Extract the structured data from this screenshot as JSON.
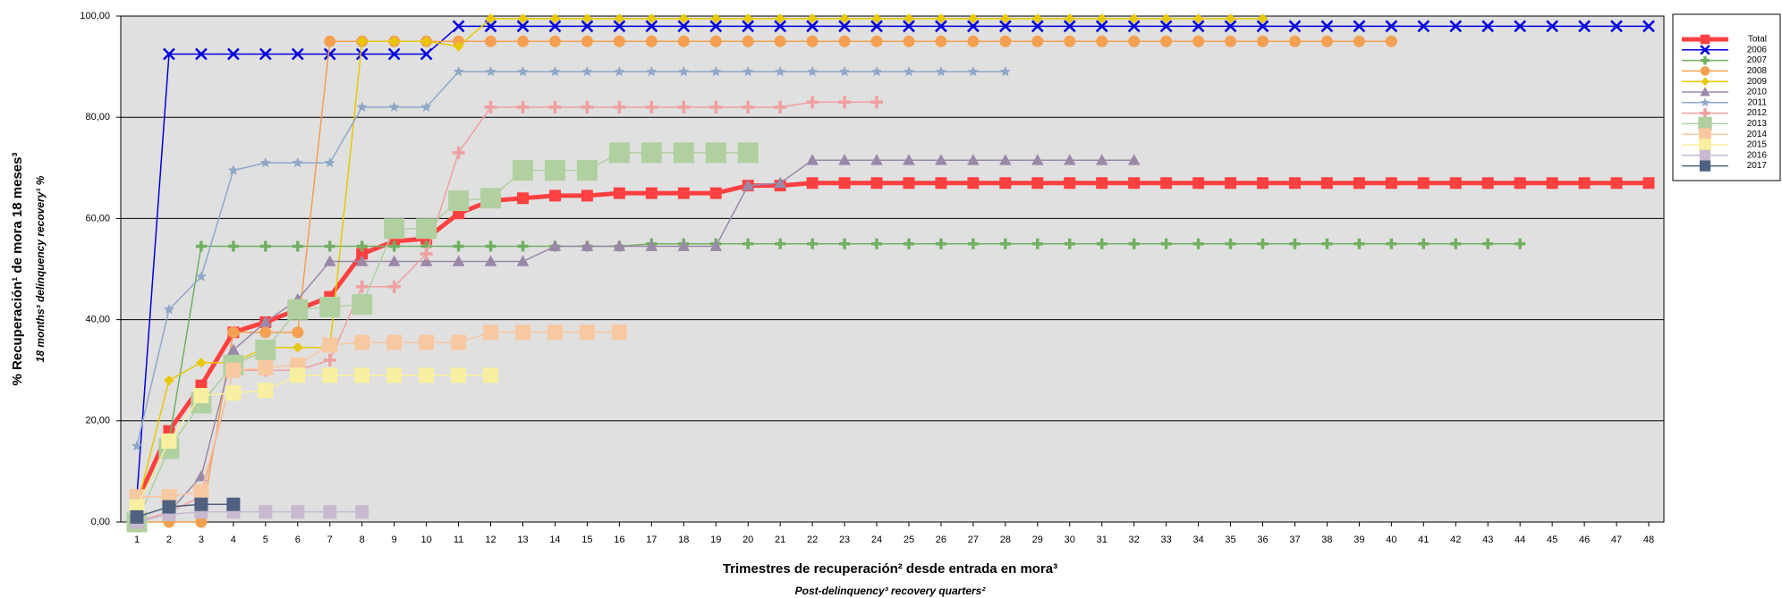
{
  "chart_data": {
    "type": "line",
    "ylabel": "% Recuperación¹ de mora 18 meses³",
    "ylabel_en": "18 months³ delinquency recovery¹ %",
    "xlabel": "Trimestres de recuperación² desde entrada en mora³",
    "xlabel_en": "Post-delinquency³ recovery quarters²",
    "categories": [
      "1",
      "2",
      "3",
      "4",
      "5",
      "6",
      "7",
      "8",
      "9",
      "10",
      "11",
      "12",
      "13",
      "14",
      "15",
      "16",
      "17",
      "18",
      "19",
      "20",
      "21",
      "22",
      "23",
      "24",
      "25",
      "26",
      "27",
      "28",
      "29",
      "30",
      "31",
      "32",
      "33",
      "34",
      "35",
      "36",
      "37",
      "38",
      "39",
      "40",
      "41",
      "42",
      "43",
      "44",
      "45",
      "46",
      "47",
      "48"
    ],
    "ylim": [
      0,
      100
    ],
    "yticks": [
      {
        "value": 0,
        "label": "0,00"
      },
      {
        "value": 20,
        "label": "20,00"
      },
      {
        "value": 40,
        "label": "40,00"
      },
      {
        "value": 60,
        "label": "60,00"
      },
      {
        "value": 80,
        "label": "80,00"
      },
      {
        "value": 100,
        "label": "100,00"
      }
    ],
    "grid": true,
    "legend": "right",
    "series": [
      {
        "name": "Total",
        "color": "#ff4040",
        "marker": "square",
        "values": [
          4,
          18,
          27,
          37.5,
          39.5,
          42,
          44.5,
          53,
          55.5,
          56,
          61,
          63.5,
          64,
          64.5,
          64.5,
          65,
          65,
          65,
          65,
          66.5,
          66.5,
          67,
          67,
          67,
          67,
          67,
          67,
          67,
          67,
          67,
          67,
          67,
          67,
          67,
          67,
          67,
          67,
          67,
          67,
          67,
          67,
          67,
          67,
          67,
          67,
          67,
          67,
          67
        ]
      },
      {
        "name": "2006",
        "color": "#0000e0",
        "marker": "x",
        "values": [
          5,
          92.5,
          92.5,
          92.5,
          92.5,
          92.5,
          92.5,
          92.5,
          92.5,
          92.5,
          98,
          98,
          98,
          98,
          98,
          98,
          98,
          98,
          98,
          98,
          98,
          98,
          98,
          98,
          98,
          98,
          98,
          98,
          98,
          98,
          98,
          98,
          98,
          98,
          98,
          98,
          98,
          98,
          98,
          98,
          98,
          98,
          98,
          98,
          98,
          98,
          98,
          98
        ]
      },
      {
        "name": "2007",
        "color": "#70b060",
        "marker": "plus",
        "values": [
          3,
          16,
          54.5,
          54.5,
          54.5,
          54.5,
          54.5,
          54.5,
          54.5,
          54.5,
          54.5,
          54.5,
          54.5,
          54.5,
          54.5,
          54.5,
          55,
          55,
          55,
          55,
          55,
          55,
          55,
          55,
          55,
          55,
          55,
          55,
          55,
          55,
          55,
          55,
          55,
          55,
          55,
          55,
          55,
          55,
          55,
          55,
          55,
          55,
          55,
          55,
          null,
          null,
          null,
          null
        ]
      },
      {
        "name": "2008",
        "color": "#f4a050",
        "marker": "circle",
        "values": [
          0,
          0,
          0,
          37.5,
          37.5,
          37.5,
          95,
          95,
          95,
          95,
          95,
          95,
          95,
          95,
          95,
          95,
          95,
          95,
          95,
          95,
          95,
          95,
          95,
          95,
          95,
          95,
          95,
          95,
          95,
          95,
          95,
          95,
          95,
          95,
          95,
          95,
          95,
          95,
          95,
          95,
          null,
          null,
          null,
          null,
          null,
          null,
          null,
          null
        ]
      },
      {
        "name": "2009",
        "color": "#e8c800",
        "marker": "diamond",
        "values": [
          3,
          28,
          31.5,
          31.5,
          34.5,
          34.5,
          34.5,
          95,
          95,
          95,
          94,
          99.5,
          99.5,
          99.5,
          99.5,
          99.5,
          99.5,
          99.5,
          99.5,
          99.5,
          99.5,
          99.5,
          99.5,
          99.5,
          99.5,
          99.5,
          99.5,
          99.5,
          99.5,
          99.5,
          99.5,
          99.5,
          99.5,
          99.5,
          99.5,
          99.5,
          null,
          null,
          null,
          null,
          null,
          null,
          null,
          null,
          null,
          null,
          null,
          null
        ]
      },
      {
        "name": "2010",
        "color": "#9a88a8",
        "marker": "triangle",
        "values": [
          0,
          2,
          9,
          34,
          39.5,
          44,
          51.5,
          51.5,
          51.5,
          51.5,
          51.5,
          51.5,
          51.5,
          54.5,
          54.5,
          54.5,
          54.5,
          54.5,
          54.5,
          66.5,
          67,
          71.5,
          71.5,
          71.5,
          71.5,
          71.5,
          71.5,
          71.5,
          71.5,
          71.5,
          71.5,
          71.5,
          null,
          null,
          null,
          null,
          null,
          null,
          null,
          null,
          null,
          null,
          null,
          null,
          null,
          null,
          null,
          null
        ]
      },
      {
        "name": "2011",
        "color": "#90a8c8",
        "marker": "star",
        "values": [
          15,
          42,
          48.5,
          69.5,
          71,
          71,
          71,
          82,
          82,
          82,
          89,
          89,
          89,
          89,
          89,
          89,
          89,
          89,
          89,
          89,
          89,
          89,
          89,
          89,
          89,
          89,
          89,
          89,
          null,
          null,
          null,
          null,
          null,
          null,
          null,
          null,
          null,
          null,
          null,
          null,
          null,
          null,
          null,
          null,
          null,
          null,
          null,
          null
        ]
      },
      {
        "name": "2012",
        "color": "#f0a0a0",
        "marker": "plus",
        "values": [
          0,
          2,
          5,
          30,
          30,
          30,
          32,
          46.5,
          46.5,
          53,
          73,
          82,
          82,
          82,
          82,
          82,
          82,
          82,
          82,
          82,
          82,
          83,
          83,
          83,
          null,
          null,
          null,
          null,
          null,
          null,
          null,
          null,
          null,
          null,
          null,
          null,
          null,
          null,
          null,
          null,
          null,
          null,
          null,
          null,
          null,
          null,
          null,
          null
        ]
      },
      {
        "name": "2013",
        "color": "#b0d0a0",
        "marker": "square",
        "values": [
          0,
          14.5,
          23.5,
          31,
          34,
          42,
          42.5,
          43,
          58,
          58,
          63.5,
          64,
          69.5,
          69.5,
          69.5,
          73,
          73,
          73,
          73,
          73,
          null,
          null,
          null,
          null,
          null,
          null,
          null,
          null,
          null,
          null,
          null,
          null,
          null,
          null,
          null,
          null,
          null,
          null,
          null,
          null,
          null,
          null,
          null,
          null,
          null,
          null,
          null,
          null
        ]
      },
      {
        "name": "2014",
        "color": "#f8c8a0",
        "marker": "square",
        "values": [
          5,
          5,
          6,
          30,
          30.5,
          31,
          35,
          35.5,
          35.5,
          35.5,
          35.5,
          37.5,
          37.5,
          37.5,
          37.5,
          37.5,
          null,
          null,
          null,
          null,
          null,
          null,
          null,
          null,
          null,
          null,
          null,
          null,
          null,
          null,
          null,
          null,
          null,
          null,
          null,
          null,
          null,
          null,
          null,
          null,
          null,
          null,
          null,
          null,
          null,
          null,
          null,
          null
        ]
      },
      {
        "name": "2015",
        "color": "#f8f0a0",
        "marker": "square",
        "values": [
          3,
          16,
          25,
          25.5,
          26,
          29,
          29,
          29,
          29,
          29,
          29,
          29,
          null,
          null,
          null,
          null,
          null,
          null,
          null,
          null,
          null,
          null,
          null,
          null,
          null,
          null,
          null,
          null,
          null,
          null,
          null,
          null,
          null,
          null,
          null,
          null,
          null,
          null,
          null,
          null,
          null,
          null,
          null,
          null,
          null,
          null,
          null,
          null
        ]
      },
      {
        "name": "2016",
        "color": "#c8b8d0",
        "marker": "square",
        "values": [
          0,
          1.5,
          2,
          2,
          2,
          2,
          2,
          2,
          null,
          null,
          null,
          null,
          null,
          null,
          null,
          null,
          null,
          null,
          null,
          null,
          null,
          null,
          null,
          null,
          null,
          null,
          null,
          null,
          null,
          null,
          null,
          null,
          null,
          null,
          null,
          null,
          null,
          null,
          null,
          null,
          null,
          null,
          null,
          null,
          null,
          null,
          null,
          null
        ]
      },
      {
        "name": "2017",
        "color": "#506080",
        "marker": "square",
        "values": [
          1,
          3,
          3.5,
          3.5,
          null,
          null,
          null,
          null,
          null,
          null,
          null,
          null,
          null,
          null,
          null,
          null,
          null,
          null,
          null,
          null,
          null,
          null,
          null,
          null,
          null,
          null,
          null,
          null,
          null,
          null,
          null,
          null,
          null,
          null,
          null,
          null,
          null,
          null,
          null,
          null,
          null,
          null,
          null,
          null,
          null,
          null,
          null,
          null
        ]
      }
    ]
  }
}
